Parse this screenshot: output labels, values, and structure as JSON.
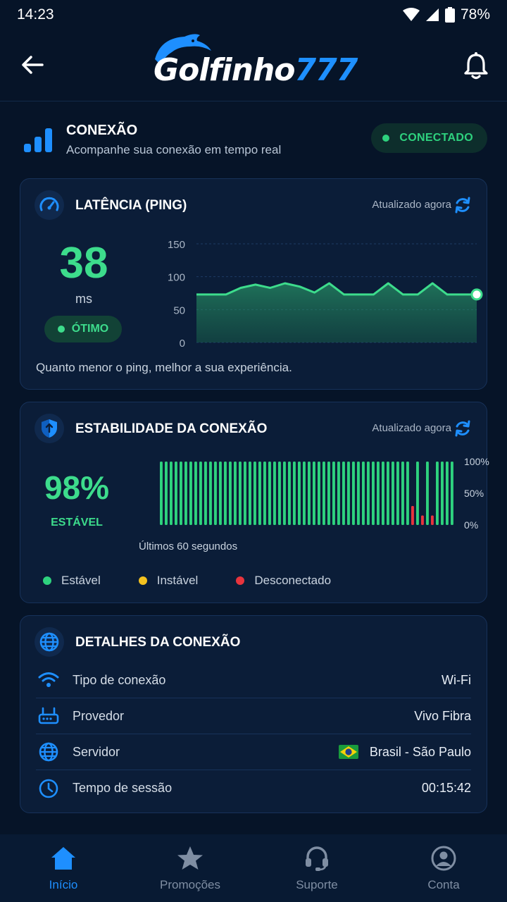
{
  "status_bar": {
    "time": "14:23",
    "battery": "78%"
  },
  "header": {
    "brand_white": "Golfinho",
    "brand_blue": "777"
  },
  "section": {
    "title": "CONEXÃO",
    "subtitle": "Acompanhe sua conexão em tempo real",
    "status": "CONECTADO"
  },
  "latency": {
    "title": "LATÊNCIA (PING)",
    "updated": "Atualizado agora",
    "value": "38",
    "unit": "ms",
    "quality": "ÓTIMO",
    "footnote": "Quanto menor o ping, melhor a sua experiência.",
    "chart_data": {
      "type": "area",
      "y_ticks": [
        "150",
        "100",
        "50",
        "0"
      ],
      "ylim": [
        0,
        150
      ],
      "values": [
        73,
        73,
        73,
        83,
        88,
        83,
        90,
        85,
        76,
        90,
        73,
        73,
        73,
        90,
        73,
        73,
        90,
        73,
        73,
        73
      ],
      "color": "#3ddc8c"
    }
  },
  "stability": {
    "title": "ESTABILIDADE DA CONEXÃO",
    "updated": "Atualizado agora",
    "value": "98%",
    "label": "ESTÁVEL",
    "caption": "Últimos 60 segundos",
    "y_ticks": [
      "100%",
      "50%",
      "0%"
    ],
    "chart_data": {
      "type": "bar",
      "ylim": [
        0,
        100
      ],
      "values": [
        100,
        100,
        100,
        100,
        100,
        100,
        100,
        100,
        100,
        100,
        100,
        100,
        100,
        100,
        100,
        100,
        100,
        100,
        100,
        100,
        100,
        100,
        100,
        100,
        100,
        100,
        100,
        100,
        100,
        100,
        100,
        100,
        100,
        100,
        100,
        100,
        100,
        100,
        100,
        100,
        100,
        100,
        100,
        100,
        100,
        100,
        100,
        100,
        100,
        100,
        100,
        30,
        100,
        15,
        100,
        15,
        100,
        100,
        100,
        100
      ],
      "status": [
        "s",
        "s",
        "s",
        "s",
        "s",
        "s",
        "s",
        "s",
        "s",
        "s",
        "s",
        "s",
        "s",
        "s",
        "s",
        "s",
        "s",
        "s",
        "s",
        "s",
        "s",
        "s",
        "s",
        "s",
        "s",
        "s",
        "s",
        "s",
        "s",
        "s",
        "s",
        "s",
        "s",
        "s",
        "s",
        "s",
        "s",
        "s",
        "s",
        "s",
        "s",
        "s",
        "s",
        "s",
        "s",
        "s",
        "s",
        "s",
        "s",
        "s",
        "s",
        "d",
        "s",
        "d",
        "s",
        "d",
        "s",
        "s",
        "s",
        "s"
      ]
    },
    "legend": [
      {
        "label": "Estável",
        "color": "#2ed27e"
      },
      {
        "label": "Instável",
        "color": "#f4c21f"
      },
      {
        "label": "Desconectado",
        "color": "#e8343d"
      }
    ]
  },
  "details": {
    "title": "DETALHES DA CONEXÃO",
    "rows": [
      {
        "icon": "wifi-icon",
        "label": "Tipo de conexão",
        "value": "Wi-Fi"
      },
      {
        "icon": "router-icon",
        "label": "Provedor",
        "value": "Vivo Fibra"
      },
      {
        "icon": "globe-icon",
        "label": "Servidor",
        "value": "Brasil - São Paulo"
      },
      {
        "icon": "clock-icon",
        "label": "Tempo de sessão",
        "value": "00:15:42"
      }
    ]
  },
  "nav": [
    {
      "icon": "home-icon",
      "label": "Início",
      "active": true
    },
    {
      "icon": "star-icon",
      "label": "Promoções",
      "active": false
    },
    {
      "icon": "headset-icon",
      "label": "Suporte",
      "active": false
    },
    {
      "icon": "user-icon",
      "label": "Conta",
      "active": false
    }
  ]
}
